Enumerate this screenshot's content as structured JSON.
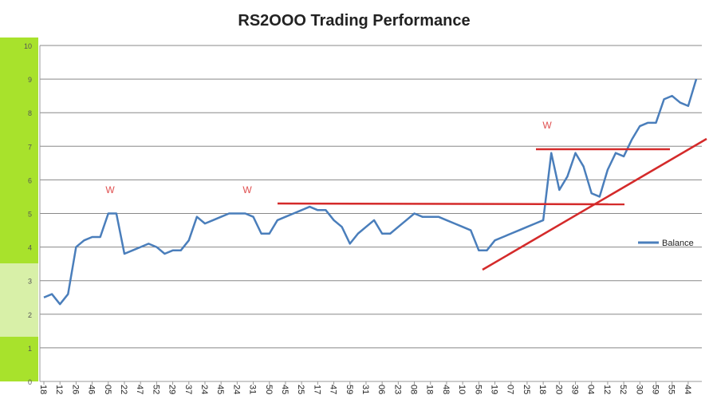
{
  "chart_data": {
    "type": "line",
    "title": "RS2OOO Trading Performance",
    "categories": [
      "18",
      null,
      "12",
      null,
      "26",
      null,
      "46",
      null,
      "05",
      null,
      "22",
      null,
      "47",
      null,
      "52",
      null,
      "29",
      null,
      "37",
      null,
      "24",
      null,
      "45",
      null,
      "24",
      null,
      "31",
      null,
      "50",
      null,
      "45",
      null,
      "25",
      null,
      "17",
      null,
      "47",
      null,
      "59",
      null,
      "31",
      null,
      "06",
      null,
      "23",
      null,
      "08",
      null,
      "18",
      null,
      "48",
      null,
      "10",
      null,
      "56",
      null,
      "19",
      null,
      "07",
      null,
      "25",
      null,
      "18",
      null,
      "20",
      null,
      "39",
      null,
      "04",
      null,
      "12",
      null,
      "52",
      null,
      "30",
      null,
      "59",
      null,
      "55",
      null,
      "44",
      null
    ],
    "series": [
      {
        "name": "Balance",
        "color": "#4a7ebb",
        "values": [
          2.5,
          2.6,
          2.3,
          2.6,
          4.0,
          4.2,
          4.3,
          4.3,
          5.0,
          5.0,
          3.8,
          3.9,
          4.0,
          4.1,
          4.0,
          3.8,
          3.9,
          3.9,
          4.2,
          4.9,
          4.7,
          4.8,
          4.9,
          5.0,
          5.0,
          5.0,
          4.9,
          4.4,
          4.4,
          4.8,
          4.9,
          5.0,
          5.1,
          5.2,
          5.1,
          5.1,
          4.8,
          4.6,
          4.1,
          4.4,
          4.6,
          4.8,
          4.4,
          4.4,
          4.6,
          4.8,
          5.0,
          4.9,
          4.9,
          4.9,
          4.8,
          4.7,
          4.6,
          4.5,
          3.9,
          3.9,
          4.2,
          4.3,
          4.4,
          4.5,
          4.6,
          4.7,
          4.8,
          6.8,
          5.7,
          6.1,
          6.8,
          6.4,
          5.6,
          5.5,
          6.3,
          6.8,
          6.7,
          7.2,
          7.6,
          7.7,
          7.7,
          8.4,
          8.5,
          8.3,
          8.2,
          9.0
        ]
      }
    ],
    "ylim": [
      0,
      10
    ],
    "yticks": [
      0,
      1,
      2,
      3,
      4,
      5,
      6,
      7,
      8,
      9,
      10
    ],
    "grid": true,
    "annotations": [
      "W",
      "W",
      "W"
    ]
  }
}
